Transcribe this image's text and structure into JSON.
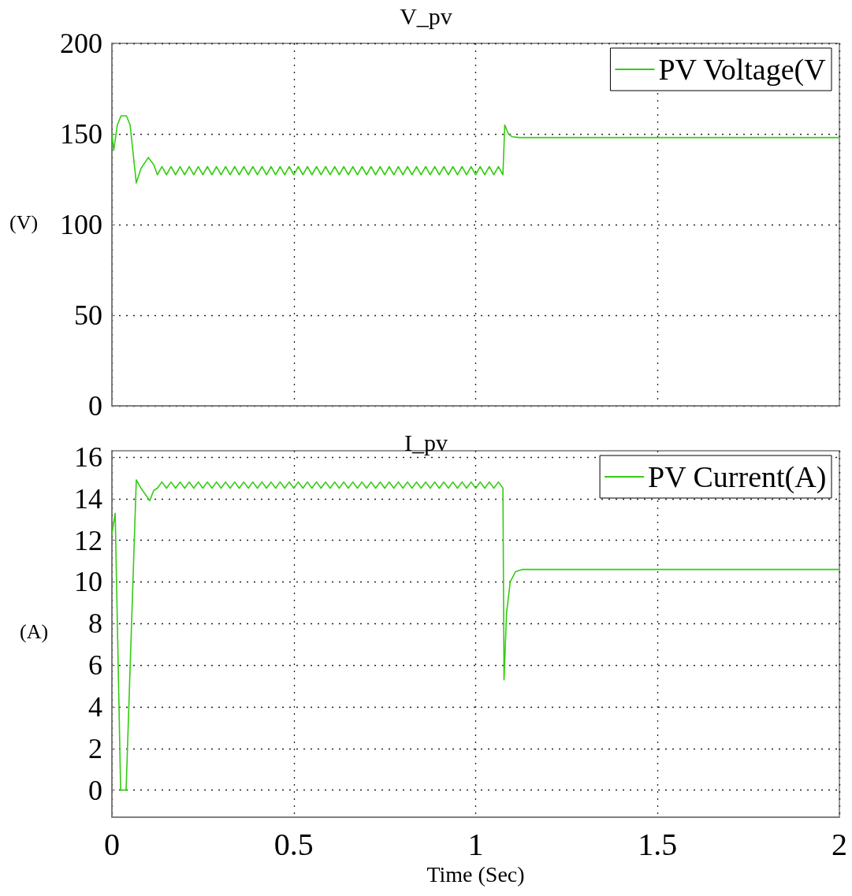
{
  "chart_data": [
    {
      "type": "line",
      "title": "V_pv",
      "ylabel": "(V)",
      "xlim": [
        0,
        2
      ],
      "xticks": [
        0,
        0.5,
        1,
        1.5,
        2
      ],
      "ylim": [
        0,
        200
      ],
      "yticks": [
        0,
        50,
        100,
        150,
        200
      ],
      "grid": true,
      "legend": "top right",
      "tick_labels": "y",
      "series": [
        {
          "name": "PV Voltage(V",
          "color": "#33cc11",
          "x": [
            0,
            0.005,
            0.015,
            0.025,
            0.04,
            0.05,
            0.067,
            0.08,
            0.1,
            0.115,
            0.125,
            0.1375,
            0.15,
            0.1625,
            0.175,
            0.1875,
            0.2,
            0.2125,
            0.225,
            0.2375,
            0.25,
            0.2625,
            0.275,
            0.2875,
            0.3,
            0.3125,
            0.325,
            0.3375,
            0.35,
            0.3625,
            0.375,
            0.3875,
            0.4,
            0.4125,
            0.425,
            0.4375,
            0.45,
            0.4625,
            0.475,
            0.4875,
            0.5,
            0.5125,
            0.525,
            0.5375,
            0.55,
            0.5625,
            0.575,
            0.5875,
            0.6,
            0.6125,
            0.625,
            0.6375,
            0.65,
            0.6625,
            0.675,
            0.6875,
            0.7,
            0.7125,
            0.725,
            0.7375,
            0.75,
            0.7625,
            0.775,
            0.7875,
            0.8,
            0.8125,
            0.825,
            0.8375,
            0.85,
            0.8625,
            0.875,
            0.8875,
            0.9,
            0.9125,
            0.925,
            0.9375,
            0.95,
            0.9625,
            0.975,
            0.9875,
            1.0,
            1.0125,
            1.025,
            1.0375,
            1.05,
            1.0625,
            1.075,
            1.08,
            1.09,
            1.1,
            1.12,
            2
          ],
          "values": [
            150,
            141,
            155,
            160,
            160,
            155,
            123,
            131,
            137,
            133,
            127.5,
            132,
            127.5,
            132,
            127.5,
            132,
            127.5,
            132,
            127.5,
            132,
            127.5,
            132,
            127.5,
            132,
            127.5,
            132,
            127.5,
            132,
            127.5,
            132,
            127.5,
            132,
            127.5,
            132,
            127.5,
            132,
            127.5,
            132,
            127.5,
            132,
            127.5,
            132,
            127.5,
            132,
            127.5,
            132,
            127.5,
            132,
            127.5,
            132,
            127.5,
            132,
            127.5,
            132,
            127.5,
            132,
            127.5,
            132,
            127.5,
            132,
            127.5,
            132,
            127.5,
            132,
            127.5,
            132,
            127.5,
            132,
            127.5,
            132,
            127.5,
            132,
            127.5,
            132,
            127.5,
            132,
            127.5,
            132,
            127.5,
            132,
            127.5,
            132,
            127.5,
            132,
            127.5,
            132,
            127.5,
            155,
            150,
            148.5,
            148,
            148
          ]
        }
      ]
    },
    {
      "type": "line",
      "title": "I_pv",
      "ylabel": "(A)",
      "xlabel": "Time (Sec)",
      "xlim": [
        0,
        2
      ],
      "xticks": [
        0,
        0.5,
        1,
        1.5,
        2
      ],
      "ylim": [
        -1.3,
        16.3
      ],
      "yticks": [
        0,
        2,
        4,
        6,
        8,
        10,
        12,
        14,
        16
      ],
      "grid": true,
      "legend": "top right",
      "series": [
        {
          "name": "PV Current(A)",
          "color": "#33cc11",
          "x": [
            0,
            0.009,
            0.024,
            0.039,
            0.067,
            0.08,
            0.104,
            0.115,
            0.125,
            0.1375,
            0.15,
            0.1625,
            0.175,
            0.1875,
            0.2,
            0.2125,
            0.225,
            0.2375,
            0.25,
            0.2625,
            0.275,
            0.2875,
            0.3,
            0.3125,
            0.325,
            0.3375,
            0.35,
            0.3625,
            0.375,
            0.3875,
            0.4,
            0.4125,
            0.425,
            0.4375,
            0.45,
            0.4625,
            0.475,
            0.4875,
            0.5,
            0.5125,
            0.525,
            0.5375,
            0.55,
            0.5625,
            0.575,
            0.5875,
            0.6,
            0.6125,
            0.625,
            0.6375,
            0.65,
            0.6625,
            0.675,
            0.6875,
            0.7,
            0.7125,
            0.725,
            0.7375,
            0.75,
            0.7625,
            0.775,
            0.7875,
            0.8,
            0.8125,
            0.825,
            0.8375,
            0.85,
            0.8625,
            0.875,
            0.8875,
            0.9,
            0.9125,
            0.925,
            0.9375,
            0.95,
            0.9625,
            0.975,
            0.9875,
            1.0,
            1.0125,
            1.025,
            1.0375,
            1.05,
            1.0625,
            1.075,
            1.078,
            1.085,
            1.095,
            1.11,
            1.13,
            2
          ],
          "values": [
            12.3,
            13.3,
            0,
            0,
            14.9,
            14.5,
            13.9,
            14.4,
            14.5,
            14.8,
            14.5,
            14.8,
            14.5,
            14.8,
            14.5,
            14.8,
            14.5,
            14.8,
            14.5,
            14.8,
            14.5,
            14.8,
            14.5,
            14.8,
            14.5,
            14.8,
            14.5,
            14.8,
            14.5,
            14.8,
            14.5,
            14.8,
            14.5,
            14.8,
            14.5,
            14.8,
            14.5,
            14.8,
            14.5,
            14.8,
            14.5,
            14.8,
            14.5,
            14.8,
            14.5,
            14.8,
            14.5,
            14.8,
            14.5,
            14.8,
            14.5,
            14.8,
            14.5,
            14.8,
            14.5,
            14.8,
            14.5,
            14.8,
            14.5,
            14.8,
            14.5,
            14.8,
            14.5,
            14.8,
            14.5,
            14.8,
            14.5,
            14.8,
            14.5,
            14.8,
            14.5,
            14.8,
            14.5,
            14.8,
            14.5,
            14.8,
            14.5,
            14.8,
            14.5,
            14.8,
            14.5,
            14.8,
            14.5,
            14.8,
            14.5,
            5.3,
            8.5,
            10,
            10.5,
            10.6,
            10.6
          ]
        }
      ]
    }
  ]
}
